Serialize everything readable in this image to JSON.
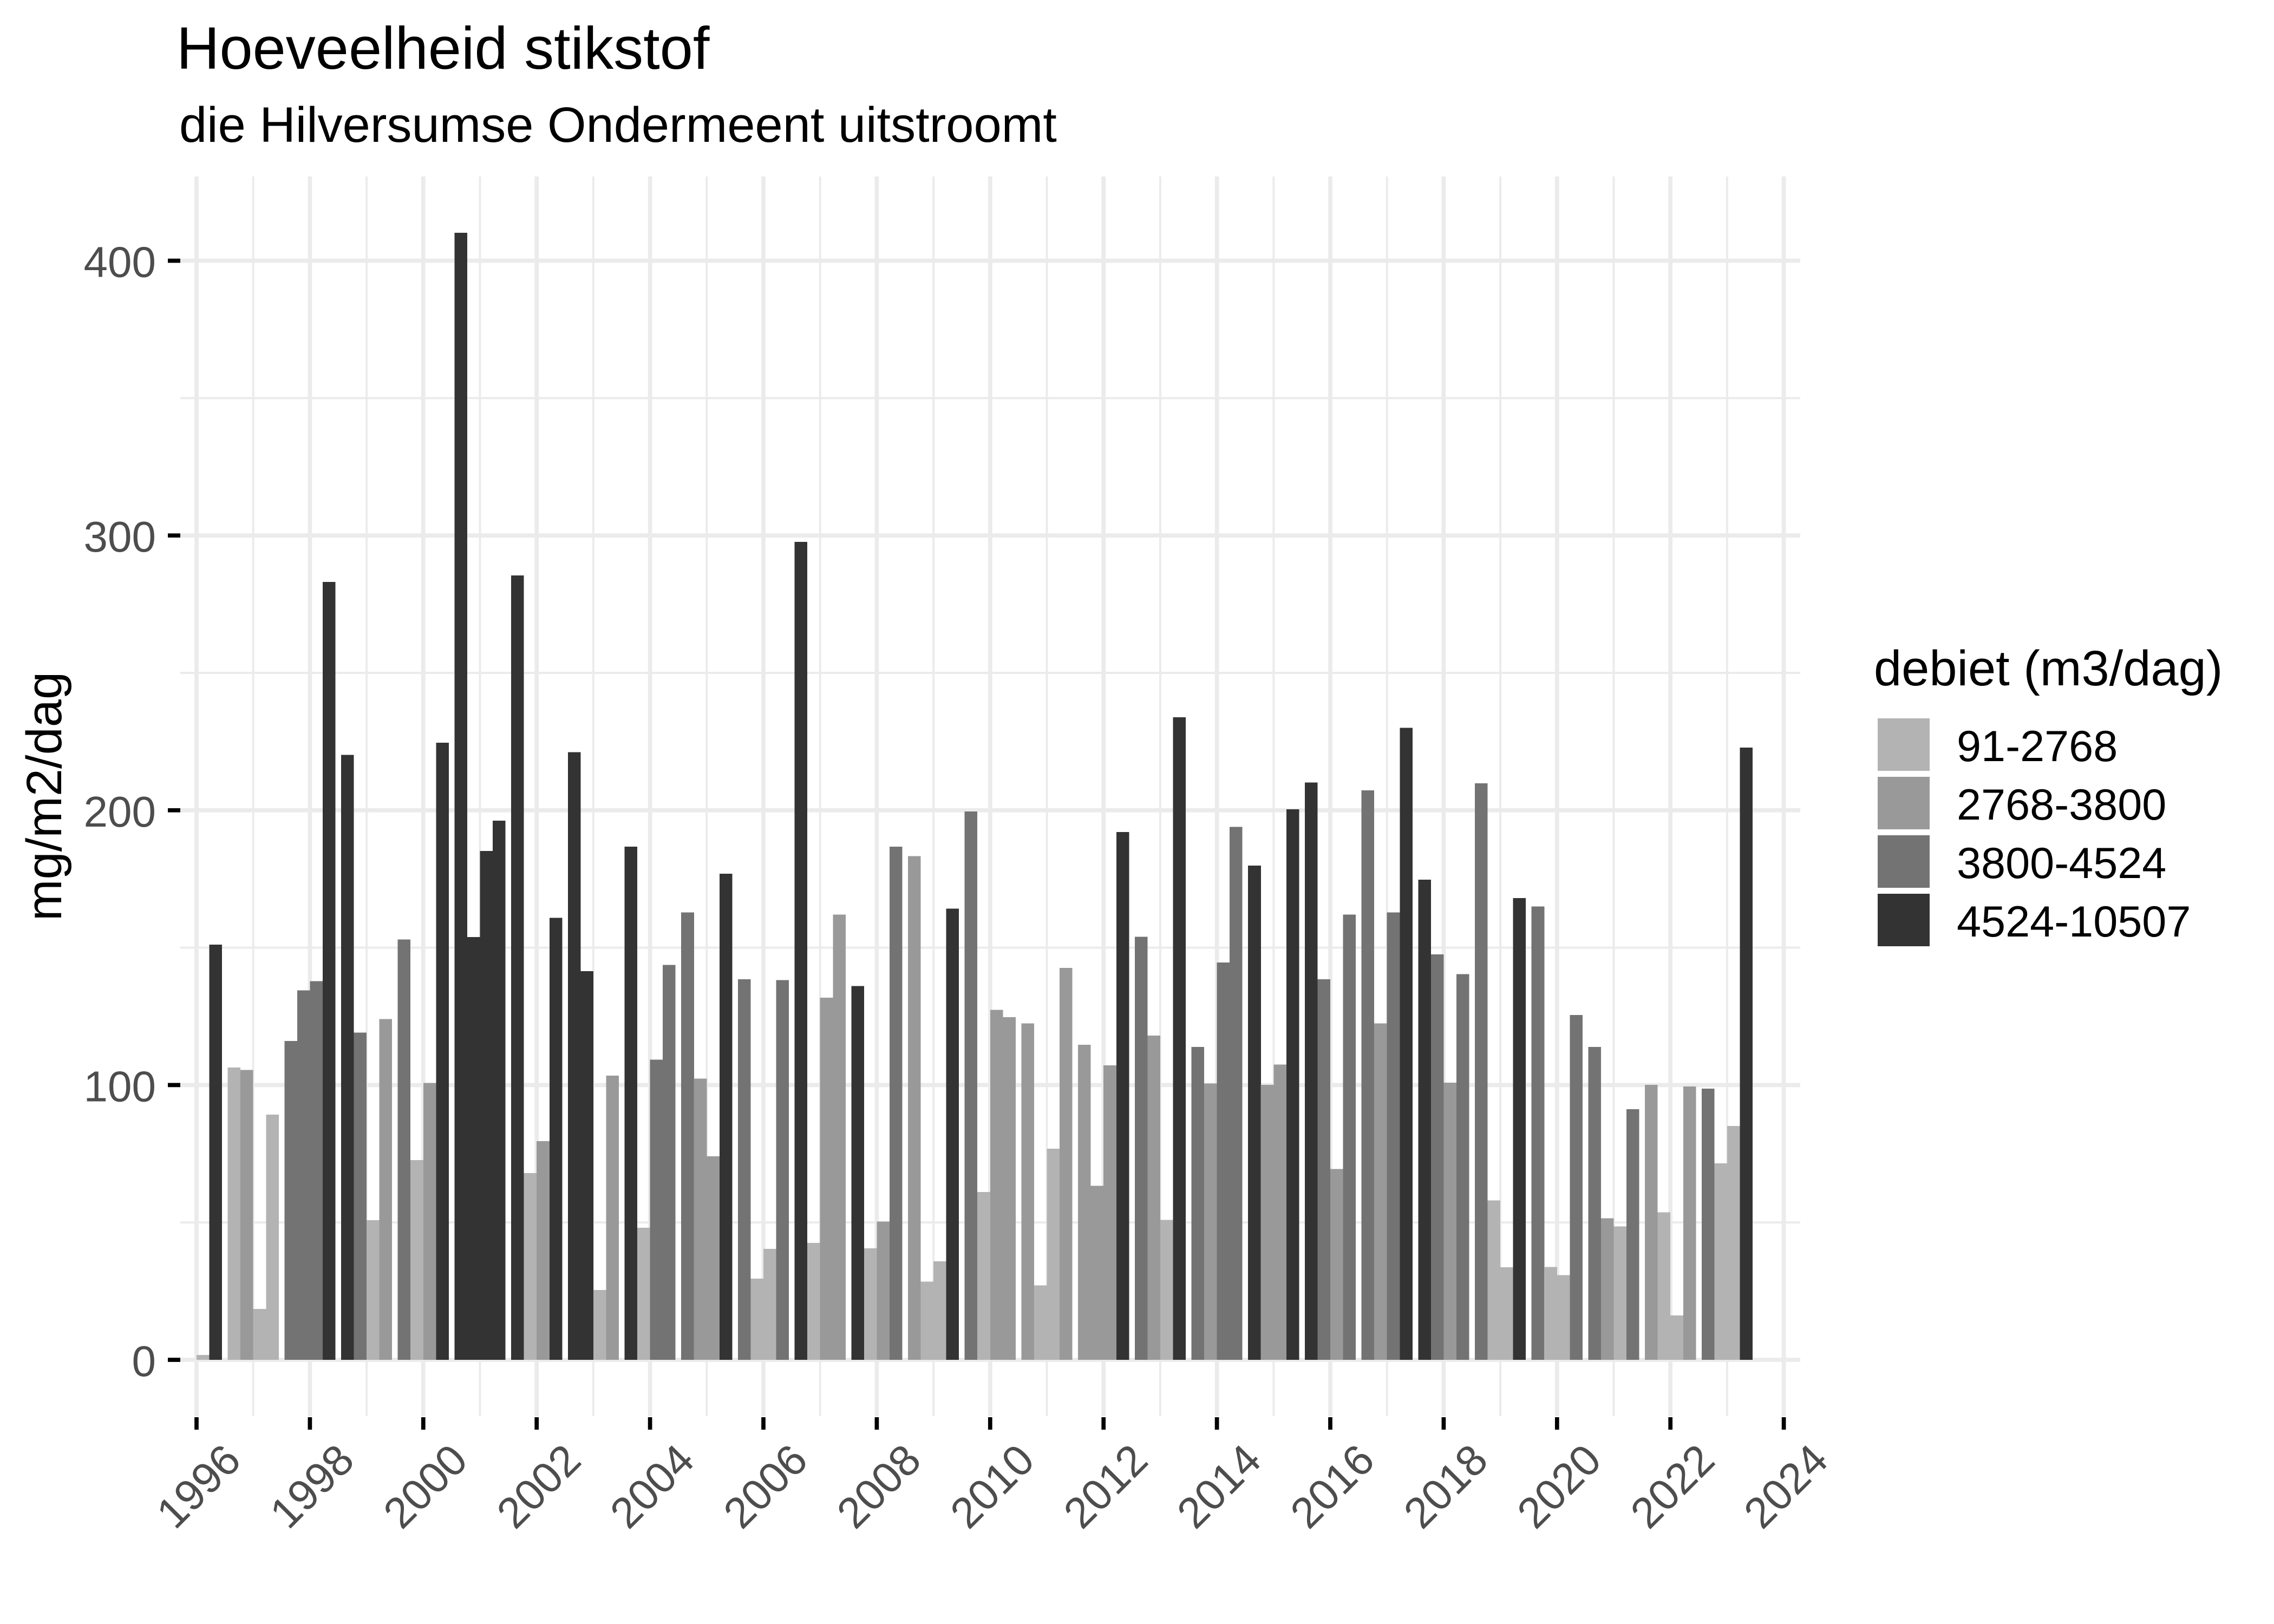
{
  "chart_data": {
    "type": "bar",
    "title": "Hoeveelheid stikstof",
    "subtitle": "die Hilversumse Ondermeent uitstroomt",
    "xlabel": "",
    "ylabel": "mg/m2/dag",
    "xlim": [
      1996,
      2024
    ],
    "ylim": [
      0,
      400
    ],
    "grid": true,
    "bar_layout": "4 quarterly bars dodged within each year",
    "x_ticks": [
      1996,
      1998,
      2000,
      2002,
      2004,
      2006,
      2008,
      2010,
      2012,
      2014,
      2016,
      2018,
      2020,
      2022,
      2024
    ],
    "x_tick_labels": [
      "1996",
      "1998",
      "2000",
      "2002",
      "2004",
      "2006",
      "2008",
      "2010",
      "2012",
      "2014",
      "2016",
      "2018",
      "2020",
      "2022",
      "2024"
    ],
    "y_ticks": [
      0,
      100,
      200,
      300,
      400
    ],
    "y_tick_labels": [
      "0",
      "100",
      "200",
      "300",
      "400"
    ],
    "legend": {
      "title": "debiet (m3/dag)",
      "position": "right",
      "entries": [
        {
          "label": "91-2768",
          "color": "#b3b3b3"
        },
        {
          "label": "2768-3800",
          "color": "#999999"
        },
        {
          "label": "3800-4524",
          "color": "#737373"
        },
        {
          "label": "4524-10507",
          "color": "#333333"
        }
      ]
    },
    "data": [
      {
        "year": 1996,
        "quarter": 3,
        "value": 1.8,
        "debiet": "91-2768"
      },
      {
        "year": 1996,
        "quarter": 4,
        "value": 151.1,
        "debiet": "4524-10507"
      },
      {
        "year": 1997,
        "quarter": 1,
        "value": 106.4,
        "debiet": "91-2768"
      },
      {
        "year": 1997,
        "quarter": 2,
        "value": 105.5,
        "debiet": "2768-3800"
      },
      {
        "year": 1997,
        "quarter": 3,
        "value": 18.5,
        "debiet": "91-2768"
      },
      {
        "year": 1997,
        "quarter": 4,
        "value": 89.2,
        "debiet": "91-2768"
      },
      {
        "year": 1998,
        "quarter": 1,
        "value": 116.0,
        "debiet": "3800-4524"
      },
      {
        "year": 1998,
        "quarter": 2,
        "value": 134.5,
        "debiet": "3800-4524"
      },
      {
        "year": 1998,
        "quarter": 3,
        "value": 137.8,
        "debiet": "3800-4524"
      },
      {
        "year": 1998,
        "quarter": 4,
        "value": 283.1,
        "debiet": "4524-10507"
      },
      {
        "year": 1999,
        "quarter": 1,
        "value": 220.2,
        "debiet": "4524-10507"
      },
      {
        "year": 1999,
        "quarter": 2,
        "value": 119.1,
        "debiet": "3800-4524"
      },
      {
        "year": 1999,
        "quarter": 3,
        "value": 50.8,
        "debiet": "91-2768"
      },
      {
        "year": 1999,
        "quarter": 4,
        "value": 124.0,
        "debiet": "2768-3800"
      },
      {
        "year": 2000,
        "quarter": 1,
        "value": 153.0,
        "debiet": "3800-4524"
      },
      {
        "year": 2000,
        "quarter": 2,
        "value": 72.7,
        "debiet": "91-2768"
      },
      {
        "year": 2000,
        "quarter": 3,
        "value": 100.8,
        "debiet": "2768-3800"
      },
      {
        "year": 2000,
        "quarter": 4,
        "value": 224.6,
        "debiet": "4524-10507"
      },
      {
        "year": 2001,
        "quarter": 1,
        "value": 410.2,
        "debiet": "4524-10507"
      },
      {
        "year": 2001,
        "quarter": 2,
        "value": 153.9,
        "debiet": "4524-10507"
      },
      {
        "year": 2001,
        "quarter": 3,
        "value": 185.2,
        "debiet": "4524-10507"
      },
      {
        "year": 2001,
        "quarter": 4,
        "value": 196.2,
        "debiet": "4524-10507"
      },
      {
        "year": 2002,
        "quarter": 1,
        "value": 285.5,
        "debiet": "4524-10507"
      },
      {
        "year": 2002,
        "quarter": 2,
        "value": 68.0,
        "debiet": "91-2768"
      },
      {
        "year": 2002,
        "quarter": 3,
        "value": 79.6,
        "debiet": "2768-3800"
      },
      {
        "year": 2002,
        "quarter": 4,
        "value": 160.9,
        "debiet": "4524-10507"
      },
      {
        "year": 2003,
        "quarter": 1,
        "value": 221.1,
        "debiet": "4524-10507"
      },
      {
        "year": 2003,
        "quarter": 2,
        "value": 141.5,
        "debiet": "4524-10507"
      },
      {
        "year": 2003,
        "quarter": 3,
        "value": 25.4,
        "debiet": "91-2768"
      },
      {
        "year": 2003,
        "quarter": 4,
        "value": 103.4,
        "debiet": "2768-3800"
      },
      {
        "year": 2004,
        "quarter": 1,
        "value": 186.8,
        "debiet": "4524-10507"
      },
      {
        "year": 2004,
        "quarter": 2,
        "value": 48.1,
        "debiet": "91-2768"
      },
      {
        "year": 2004,
        "quarter": 3,
        "value": 109.2,
        "debiet": "3800-4524"
      },
      {
        "year": 2004,
        "quarter": 4,
        "value": 143.7,
        "debiet": "3800-4524"
      },
      {
        "year": 2005,
        "quarter": 1,
        "value": 162.8,
        "debiet": "3800-4524"
      },
      {
        "year": 2005,
        "quarter": 2,
        "value": 102.3,
        "debiet": "2768-3800"
      },
      {
        "year": 2005,
        "quarter": 3,
        "value": 74.1,
        "debiet": "2768-3800"
      },
      {
        "year": 2005,
        "quarter": 4,
        "value": 176.9,
        "debiet": "4524-10507"
      },
      {
        "year": 2006,
        "quarter": 1,
        "value": 138.5,
        "debiet": "3800-4524"
      },
      {
        "year": 2006,
        "quarter": 2,
        "value": 29.6,
        "debiet": "91-2768"
      },
      {
        "year": 2006,
        "quarter": 3,
        "value": 40.4,
        "debiet": "91-2768"
      },
      {
        "year": 2006,
        "quarter": 4,
        "value": 138.2,
        "debiet": "3800-4524"
      },
      {
        "year": 2007,
        "quarter": 1,
        "value": 297.7,
        "debiet": "4524-10507"
      },
      {
        "year": 2007,
        "quarter": 2,
        "value": 42.6,
        "debiet": "91-2768"
      },
      {
        "year": 2007,
        "quarter": 3,
        "value": 131.8,
        "debiet": "2768-3800"
      },
      {
        "year": 2007,
        "quarter": 4,
        "value": 162.0,
        "debiet": "2768-3800"
      },
      {
        "year": 2008,
        "quarter": 1,
        "value": 136.0,
        "debiet": "4524-10507"
      },
      {
        "year": 2008,
        "quarter": 2,
        "value": 40.6,
        "debiet": "91-2768"
      },
      {
        "year": 2008,
        "quarter": 3,
        "value": 50.3,
        "debiet": "2768-3800"
      },
      {
        "year": 2008,
        "quarter": 4,
        "value": 186.8,
        "debiet": "3800-4524"
      },
      {
        "year": 2009,
        "quarter": 1,
        "value": 183.3,
        "debiet": "2768-3800"
      },
      {
        "year": 2009,
        "quarter": 2,
        "value": 28.5,
        "debiet": "91-2768"
      },
      {
        "year": 2009,
        "quarter": 3,
        "value": 35.9,
        "debiet": "91-2768"
      },
      {
        "year": 2009,
        "quarter": 4,
        "value": 164.2,
        "debiet": "4524-10507"
      },
      {
        "year": 2010,
        "quarter": 1,
        "value": 199.6,
        "debiet": "3800-4524"
      },
      {
        "year": 2010,
        "quarter": 2,
        "value": 61.1,
        "debiet": "91-2768"
      },
      {
        "year": 2010,
        "quarter": 3,
        "value": 127.4,
        "debiet": "2768-3800"
      },
      {
        "year": 2010,
        "quarter": 4,
        "value": 124.7,
        "debiet": "2768-3800"
      },
      {
        "year": 2011,
        "quarter": 1,
        "value": 122.4,
        "debiet": "2768-3800"
      },
      {
        "year": 2011,
        "quarter": 2,
        "value": 27.1,
        "debiet": "91-2768"
      },
      {
        "year": 2011,
        "quarter": 3,
        "value": 76.8,
        "debiet": "91-2768"
      },
      {
        "year": 2011,
        "quarter": 4,
        "value": 142.6,
        "debiet": "2768-3800"
      },
      {
        "year": 2012,
        "quarter": 1,
        "value": 114.7,
        "debiet": "2768-3800"
      },
      {
        "year": 2012,
        "quarter": 2,
        "value": 63.3,
        "debiet": "2768-3800"
      },
      {
        "year": 2012,
        "quarter": 3,
        "value": 107.2,
        "debiet": "2768-3800"
      },
      {
        "year": 2012,
        "quarter": 4,
        "value": 192.1,
        "debiet": "4524-10507"
      },
      {
        "year": 2013,
        "quarter": 1,
        "value": 154.0,
        "debiet": "3800-4524"
      },
      {
        "year": 2013,
        "quarter": 2,
        "value": 118.0,
        "debiet": "2768-3800"
      },
      {
        "year": 2013,
        "quarter": 3,
        "value": 50.9,
        "debiet": "91-2768"
      },
      {
        "year": 2013,
        "quarter": 4,
        "value": 233.8,
        "debiet": "4524-10507"
      },
      {
        "year": 2014,
        "quarter": 1,
        "value": 113.9,
        "debiet": "3800-4524"
      },
      {
        "year": 2014,
        "quarter": 2,
        "value": 100.6,
        "debiet": "2768-3800"
      },
      {
        "year": 2014,
        "quarter": 3,
        "value": 144.6,
        "debiet": "3800-4524"
      },
      {
        "year": 2014,
        "quarter": 4,
        "value": 194.0,
        "debiet": "3800-4524"
      },
      {
        "year": 2015,
        "quarter": 1,
        "value": 179.9,
        "debiet": "4524-10507"
      },
      {
        "year": 2015,
        "quarter": 2,
        "value": 100.1,
        "debiet": "2768-3800"
      },
      {
        "year": 2015,
        "quarter": 3,
        "value": 107.5,
        "debiet": "2768-3800"
      },
      {
        "year": 2015,
        "quarter": 4,
        "value": 200.4,
        "debiet": "4524-10507"
      },
      {
        "year": 2016,
        "quarter": 1,
        "value": 210.1,
        "debiet": "4524-10507"
      },
      {
        "year": 2016,
        "quarter": 2,
        "value": 138.5,
        "debiet": "3800-4524"
      },
      {
        "year": 2016,
        "quarter": 3,
        "value": 69.4,
        "debiet": "2768-3800"
      },
      {
        "year": 2016,
        "quarter": 4,
        "value": 162.0,
        "debiet": "3800-4524"
      },
      {
        "year": 2017,
        "quarter": 1,
        "value": 207.3,
        "debiet": "3800-4524"
      },
      {
        "year": 2017,
        "quarter": 2,
        "value": 122.4,
        "debiet": "2768-3800"
      },
      {
        "year": 2017,
        "quarter": 3,
        "value": 162.8,
        "debiet": "3800-4524"
      },
      {
        "year": 2017,
        "quarter": 4,
        "value": 230.0,
        "debiet": "4524-10507"
      },
      {
        "year": 2018,
        "quarter": 1,
        "value": 174.7,
        "debiet": "4524-10507"
      },
      {
        "year": 2018,
        "quarter": 2,
        "value": 147.6,
        "debiet": "3800-4524"
      },
      {
        "year": 2018,
        "quarter": 3,
        "value": 100.9,
        "debiet": "2768-3800"
      },
      {
        "year": 2018,
        "quarter": 4,
        "value": 140.4,
        "debiet": "3800-4524"
      },
      {
        "year": 2019,
        "quarter": 1,
        "value": 209.8,
        "debiet": "3800-4524"
      },
      {
        "year": 2019,
        "quarter": 2,
        "value": 58.0,
        "debiet": "91-2768"
      },
      {
        "year": 2019,
        "quarter": 3,
        "value": 33.7,
        "debiet": "91-2768"
      },
      {
        "year": 2019,
        "quarter": 4,
        "value": 168.0,
        "debiet": "4524-10507"
      },
      {
        "year": 2020,
        "quarter": 1,
        "value": 165.0,
        "debiet": "3800-4524"
      },
      {
        "year": 2020,
        "quarter": 2,
        "value": 33.8,
        "debiet": "91-2768"
      },
      {
        "year": 2020,
        "quarter": 3,
        "value": 30.8,
        "debiet": "91-2768"
      },
      {
        "year": 2020,
        "quarter": 4,
        "value": 125.5,
        "debiet": "3800-4524"
      },
      {
        "year": 2021,
        "quarter": 1,
        "value": 113.9,
        "debiet": "3800-4524"
      },
      {
        "year": 2021,
        "quarter": 2,
        "value": 51.5,
        "debiet": "2768-3800"
      },
      {
        "year": 2021,
        "quarter": 3,
        "value": 48.6,
        "debiet": "91-2768"
      },
      {
        "year": 2021,
        "quarter": 4,
        "value": 91.2,
        "debiet": "3800-4524"
      },
      {
        "year": 2022,
        "quarter": 1,
        "value": 100.1,
        "debiet": "2768-3800"
      },
      {
        "year": 2022,
        "quarter": 2,
        "value": 53.7,
        "debiet": "91-2768"
      },
      {
        "year": 2022,
        "quarter": 3,
        "value": 16.2,
        "debiet": "91-2768"
      },
      {
        "year": 2022,
        "quarter": 4,
        "value": 99.5,
        "debiet": "2768-3800"
      },
      {
        "year": 2023,
        "quarter": 1,
        "value": 98.7,
        "debiet": "3800-4524"
      },
      {
        "year": 2023,
        "quarter": 2,
        "value": 71.5,
        "debiet": "91-2768"
      },
      {
        "year": 2023,
        "quarter": 3,
        "value": 85.1,
        "debiet": "91-2768"
      },
      {
        "year": 2023,
        "quarter": 4,
        "value": 222.8,
        "debiet": "4524-10507"
      }
    ]
  }
}
